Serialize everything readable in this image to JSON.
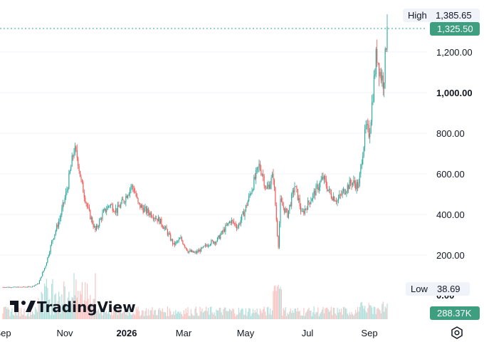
{
  "brand": {
    "name": "TradingView",
    "logo_icon": "tradingview-logo-icon"
  },
  "markers": {
    "high": {
      "label": "High",
      "value": "1,385.65"
    },
    "last": {
      "value": "1,325.50"
    },
    "low": {
      "label": "Low",
      "value": "38.69"
    },
    "volume": {
      "value": "288.37K"
    },
    "zero": {
      "value": "0.00"
    }
  },
  "settings_icon": "gear-icon",
  "colors": {
    "up": "#26a69a",
    "down": "#ef5350",
    "vol_up": "#b2dfdb",
    "vol_down": "#f8c5c3",
    "last_tag": "#3d9e80",
    "grid": "#f0f3fa",
    "axis_text": "#131722",
    "tag_bg": "#f0f3fa"
  },
  "chart_data": {
    "type": "candlestick",
    "title": "",
    "xlabel": "",
    "ylabel": "",
    "ylim": [
      0,
      1400
    ],
    "y_ticks": [
      "200.00",
      "400.00",
      "600.00",
      "800.00",
      "1,000.00",
      "1,200.00"
    ],
    "y_tick_values": [
      200,
      400,
      600,
      800,
      1000,
      1200
    ],
    "x_ticks": [
      "Sep",
      "Nov",
      "2026",
      "Mar",
      "May",
      "Jul",
      "Sep"
    ],
    "x_tick_weeks": [
      0,
      8.7,
      17.4,
      25.4,
      34.1,
      42.8,
      51.5
    ],
    "grid": "horizontal",
    "series": [
      {
        "kind": "close",
        "anchors_week_close": [
          [
            0,
            42
          ],
          [
            2,
            42
          ],
          [
            4,
            44
          ],
          [
            5,
            60
          ],
          [
            6,
            150
          ],
          [
            7,
            280
          ],
          [
            8,
            380
          ],
          [
            9,
            520
          ],
          [
            10,
            720
          ],
          [
            10.5,
            680
          ],
          [
            11,
            560
          ],
          [
            12,
            420
          ],
          [
            13,
            320
          ],
          [
            14,
            400
          ],
          [
            15,
            450
          ],
          [
            16,
            420
          ],
          [
            17,
            470
          ],
          [
            18,
            540
          ],
          [
            18.5,
            520
          ],
          [
            19,
            450
          ],
          [
            20,
            420
          ],
          [
            21,
            400
          ],
          [
            22,
            370
          ],
          [
            23,
            320
          ],
          [
            24,
            250
          ],
          [
            25,
            280
          ],
          [
            26,
            220
          ],
          [
            27,
            210
          ],
          [
            28,
            230
          ],
          [
            29,
            260
          ],
          [
            30,
            270
          ],
          [
            31,
            320
          ],
          [
            32,
            370
          ],
          [
            33,
            340
          ],
          [
            34,
            420
          ],
          [
            35,
            530
          ],
          [
            36,
            640
          ],
          [
            36.5,
            600
          ],
          [
            37,
            520
          ],
          [
            38,
            590
          ],
          [
            38.7,
            240
          ],
          [
            39,
            460
          ],
          [
            40,
            400
          ],
          [
            41,
            540
          ],
          [
            41.5,
            480
          ],
          [
            42,
            400
          ],
          [
            43,
            460
          ],
          [
            44,
            520
          ],
          [
            45,
            580
          ],
          [
            46,
            500
          ],
          [
            47,
            470
          ],
          [
            48,
            520
          ],
          [
            49,
            560
          ],
          [
            50,
            540
          ],
          [
            50.5,
            700
          ],
          [
            51,
            820
          ],
          [
            51.5,
            800
          ],
          [
            52,
            1000
          ],
          [
            52.5,
            1200
          ],
          [
            53,
            1100
          ],
          [
            53.5,
            1050
          ],
          [
            54,
            1325.5
          ]
        ]
      },
      {
        "kind": "volume",
        "note_units": "thousands",
        "last_value_k": 288.37
      }
    ],
    "high": 1385.65,
    "low": 38.69,
    "last": 1325.5
  }
}
